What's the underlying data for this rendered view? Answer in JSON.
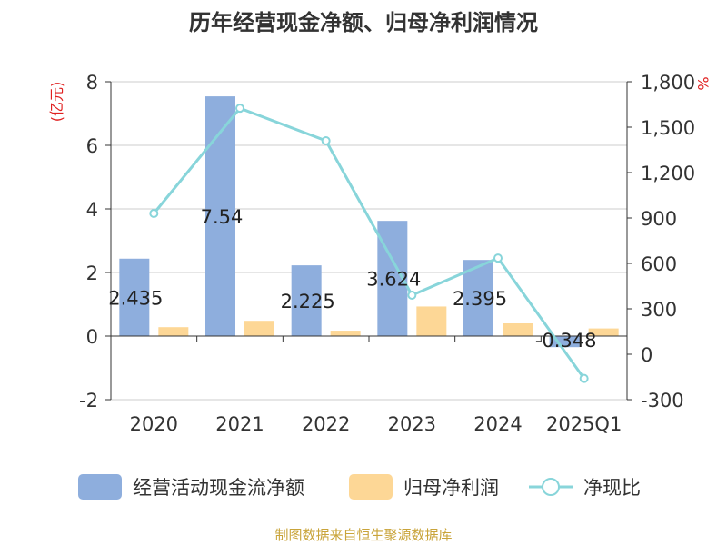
{
  "chart_data": {
    "type": "bar",
    "title": "历年经营现金净额、归母净利润情况",
    "categories": [
      "2020",
      "2021",
      "2022",
      "2023",
      "2024",
      "2025Q1"
    ],
    "series": [
      {
        "name": "经营活动现金流净额",
        "axis": "left",
        "kind": "bar",
        "color": "#8eaedd",
        "values": [
          2.435,
          7.54,
          2.225,
          3.624,
          2.395,
          -0.348
        ]
      },
      {
        "name": "归母净利润",
        "axis": "left",
        "kind": "bar",
        "color": "#fdd796",
        "values": [
          0.28,
          0.48,
          0.17,
          0.93,
          0.4,
          0.24
        ]
      },
      {
        "name": "净现比",
        "axis": "right",
        "kind": "line",
        "color": "#88d5da",
        "values": [
          930,
          1625,
          1410,
          390,
          635,
          -160
        ]
      }
    ],
    "data_labels": [
      "2.435",
      "7.54",
      "2.225",
      "3.624",
      "2.395",
      "-0.348"
    ],
    "y_left": {
      "label": "(亿元)",
      "ticks": [
        "8",
        "6",
        "4",
        "2",
        "0",
        "-2"
      ],
      "range": [
        -2,
        8
      ]
    },
    "y_right": {
      "label": "%",
      "ticks": [
        "1,800",
        "1,500",
        "1,200",
        "900",
        "600",
        "300",
        "0",
        "-300"
      ],
      "range": [
        -300,
        1800
      ]
    },
    "grid": true,
    "legend_position": "bottom",
    "source": "制图数据来自恒生聚源数据库"
  }
}
